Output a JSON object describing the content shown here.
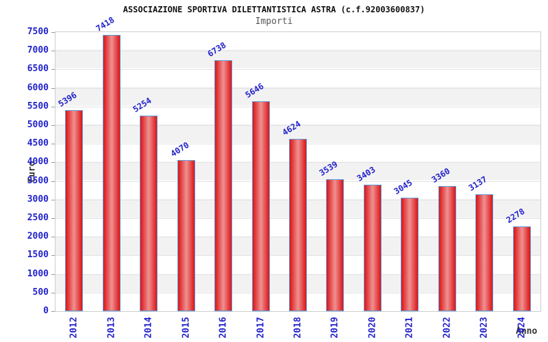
{
  "chart_data": {
    "type": "bar",
    "title": "ASSOCIAZIONE SPORTIVA DILETTANTISTICA ASTRA (c.f.92003600837)",
    "subtitle": "Importi",
    "xlabel": "Anno",
    "ylabel": "Euro",
    "categories": [
      "2012",
      "2013",
      "2014",
      "2015",
      "2016",
      "2017",
      "2018",
      "2019",
      "2020",
      "2021",
      "2022",
      "2023",
      "2024"
    ],
    "values": [
      5396,
      7418,
      5254,
      4070,
      6738,
      5646,
      4624,
      3539,
      3403,
      3045,
      3360,
      3137,
      2278
    ],
    "value_labels_shown": true,
    "ylim": [
      0,
      7500
    ],
    "ytick_step": 500,
    "yticks": [
      0,
      500,
      1000,
      1500,
      2000,
      2500,
      3000,
      3500,
      4000,
      4500,
      5000,
      5500,
      6000,
      6500,
      7000,
      7500
    ],
    "grid": "horizontal-bands-alternating",
    "legend": "none",
    "colors": {
      "bar_edge": "#dc1416",
      "bar_center": "#ef9191",
      "bar_border": "#5aa2e0",
      "tick_label_blue": "#2222cc",
      "value_label_blue": "#2222cc",
      "axis_title_text": "#333333",
      "band_gray": "#f2f2f2",
      "band_white": "#ffffff",
      "plot_border": "#cccccc",
      "title_text": "#111111",
      "subtitle_text": "#555555",
      "page_background": "#ffffff"
    }
  }
}
